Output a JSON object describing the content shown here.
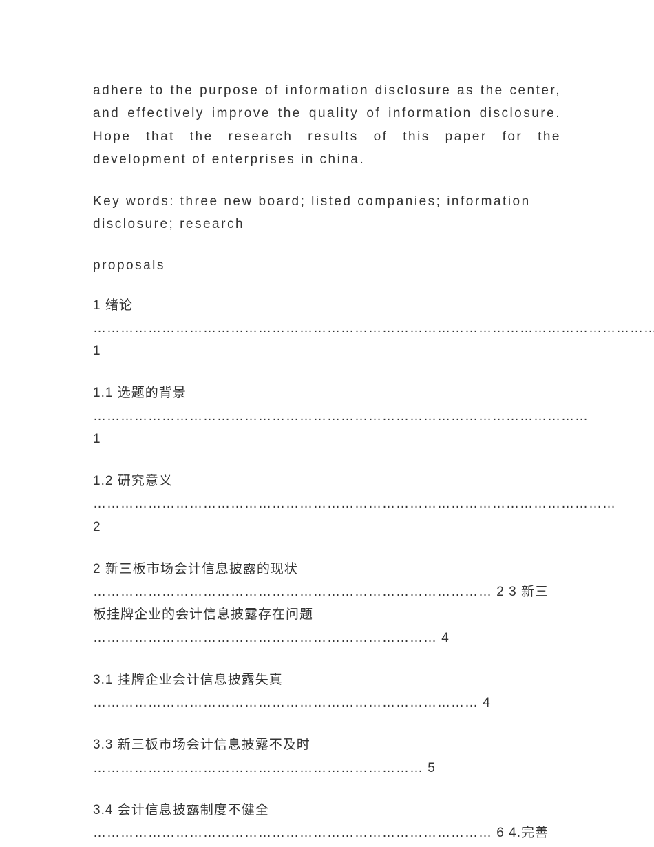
{
  "abstract": {
    "text": "adhere to the purpose of information disclosure as the center, and effectively improve the quality of information disclosure. Hope that the research results of this paper for the development of enterprises in china."
  },
  "keywords": {
    "text": "Key words: three new board; listed companies; information disclosure; research"
  },
  "proposals": {
    "text": "proposals"
  },
  "toc": {
    "entry1": "1 绪论 ……………………………………………………………………………………………………………… 1",
    "entry2": "1.1 选题的背景 ……………………………………………………………………………………………… 1",
    "entry3": "1.2 研究意义 …………………………………………………………………………………………………… 2",
    "entry4": "2 新三板市场会计信息披露的现状 …………………………………………………………………………… 2 3 新三板挂牌企业的会计信息披露存在问题 ………………………………………………………………… 4",
    "entry5": "3.1 挂牌企业会计信息披露失真 ………………………………………………………………………… 4",
    "entry6": "3.3 新三板市场会计信息披露不及时 ……………………………………………………………… 5",
    "entry7": "3.4 会计信息披露制度不健全 …………………………………………………………………………… 6 4.完善"
  }
}
